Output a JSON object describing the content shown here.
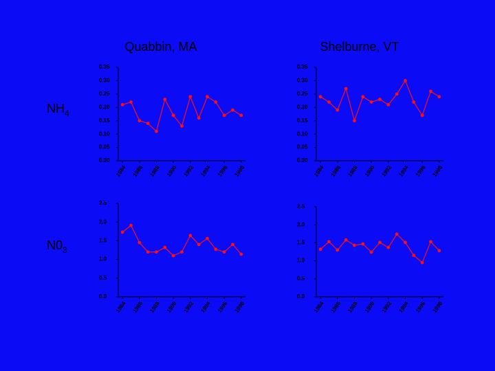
{
  "column_titles": [
    "Quabbin, MA",
    "Shelburne, VT"
  ],
  "row_labels": [
    {
      "text": "NH",
      "subscript": "4"
    },
    {
      "text": "N0",
      "subscript": "3"
    }
  ],
  "chart_data": [
    {
      "type": "line",
      "color": "#ff1010",
      "x": [
        1984,
        1985,
        1986,
        1987,
        1988,
        1989,
        1990,
        1991,
        1992,
        1993,
        1994,
        1995,
        1996,
        1997,
        1998
      ],
      "values": [
        0.21,
        0.22,
        0.15,
        0.14,
        0.11,
        0.23,
        0.17,
        0.13,
        0.24,
        0.16,
        0.24,
        0.22,
        0.17,
        0.19,
        0.17
      ],
      "xlim": [
        1983.5,
        1998.5
      ],
      "xticks": [
        1984,
        1986,
        1988,
        1990,
        1992,
        1994,
        1996,
        1998
      ],
      "ylim": [
        0,
        0.35
      ],
      "yticks": [
        {
          "value": 0,
          "label": "0.00"
        },
        0.05,
        {
          "value": 0.1,
          "label": "0.10"
        },
        0.15,
        {
          "value": 0.2,
          "label": "0.20"
        },
        0.25,
        {
          "value": 0.3,
          "label": "0.30"
        },
        0.35
      ]
    },
    {
      "type": "line",
      "color": "#ff1010",
      "x": [
        1984,
        1985,
        1986,
        1987,
        1988,
        1989,
        1990,
        1991,
        1992,
        1993,
        1994,
        1995,
        1996,
        1997,
        1998
      ],
      "values": [
        0.24,
        0.22,
        0.19,
        0.27,
        0.15,
        0.24,
        0.22,
        0.23,
        0.21,
        0.25,
        0.3,
        0.22,
        0.17,
        0.26,
        0.24
      ],
      "xlim": [
        1983.5,
        1998.5
      ],
      "xticks": [
        1984,
        1986,
        1988,
        1990,
        1992,
        1994,
        1996,
        1998
      ],
      "ylim": [
        0,
        0.35
      ],
      "yticks": [
        {
          "value": 0,
          "label": "0.00"
        },
        0.05,
        {
          "value": 0.1,
          "label": "0.10"
        },
        0.15,
        {
          "value": 0.2,
          "label": "0.20"
        },
        0.25,
        {
          "value": 0.3,
          "label": "0.30"
        },
        0.35
      ]
    },
    {
      "type": "line",
      "color": "#ff1010",
      "x": [
        1984,
        1985,
        1986,
        1987,
        1988,
        1989,
        1990,
        1991,
        1992,
        1993,
        1994,
        1995,
        1996,
        1997,
        1998
      ],
      "values": [
        1.73,
        1.91,
        1.45,
        1.2,
        1.2,
        1.32,
        1.1,
        1.2,
        1.64,
        1.4,
        1.56,
        1.27,
        1.2,
        1.4,
        1.14
      ],
      "xlim": [
        1983.5,
        1998.5
      ],
      "xticks": [
        1984,
        1986,
        1988,
        1990,
        1992,
        1994,
        1996,
        1998
      ],
      "ylim": [
        0,
        2.5
      ],
      "yticks": [
        {
          "value": 0,
          "label": "0.0"
        },
        0.5,
        {
          "value": 1,
          "label": "1.0"
        },
        1.5,
        {
          "value": 2,
          "label": "2.0"
        },
        2.5
      ]
    },
    {
      "type": "line",
      "color": "#ff1010",
      "x": [
        1984,
        1985,
        1986,
        1987,
        1988,
        1989,
        1990,
        1991,
        1992,
        1993,
        1994,
        1995,
        1996,
        1997,
        1998
      ],
      "values": [
        1.32,
        1.53,
        1.3,
        1.58,
        1.43,
        1.47,
        1.24,
        1.51,
        1.37,
        1.74,
        1.51,
        1.15,
        0.95,
        1.53,
        1.28
      ],
      "xlim": [
        1983.5,
        1998.5
      ],
      "xticks": [
        1984,
        1986,
        1988,
        1990,
        1992,
        1994,
        1996,
        1998
      ],
      "ylim": [
        0,
        2.5
      ],
      "yticks": [
        {
          "value": 0,
          "label": "0.0"
        },
        0.5,
        {
          "value": 1,
          "label": "1.0"
        },
        1.5,
        {
          "value": 2,
          "label": "2.0"
        },
        2.5
      ]
    }
  ]
}
